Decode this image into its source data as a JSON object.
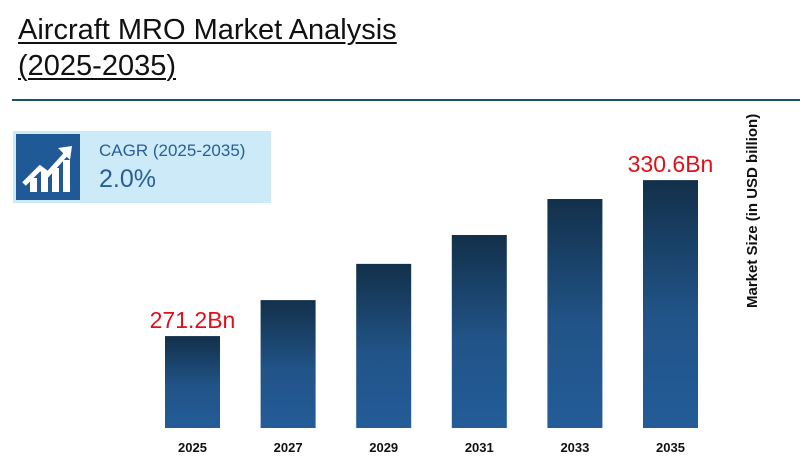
{
  "title_line1": " Aircraft MRO Market Analysis",
  "title_line2": "(2025-2035)",
  "cagr": {
    "label": "CAGR (2025-2035)",
    "value": "2.0%",
    "icon": "growth-chart-icon"
  },
  "chart_data": {
    "type": "bar",
    "categories": [
      "2025",
      "2027",
      "2029",
      "2031",
      "2033",
      "2035"
    ],
    "values": [
      271.2,
      284.9,
      298.7,
      309.7,
      323.4,
      330.6
    ],
    "data_labels": [
      "271.2Bn",
      "",
      "",
      "",
      "",
      "330.6Bn"
    ],
    "xlabel": "",
    "ylabel": "Market Size (in USD billion)",
    "grid": false,
    "colors": {
      "bar_top": "#12304a",
      "bar_bottom": "#235c98",
      "label": "#e0101a"
    }
  }
}
